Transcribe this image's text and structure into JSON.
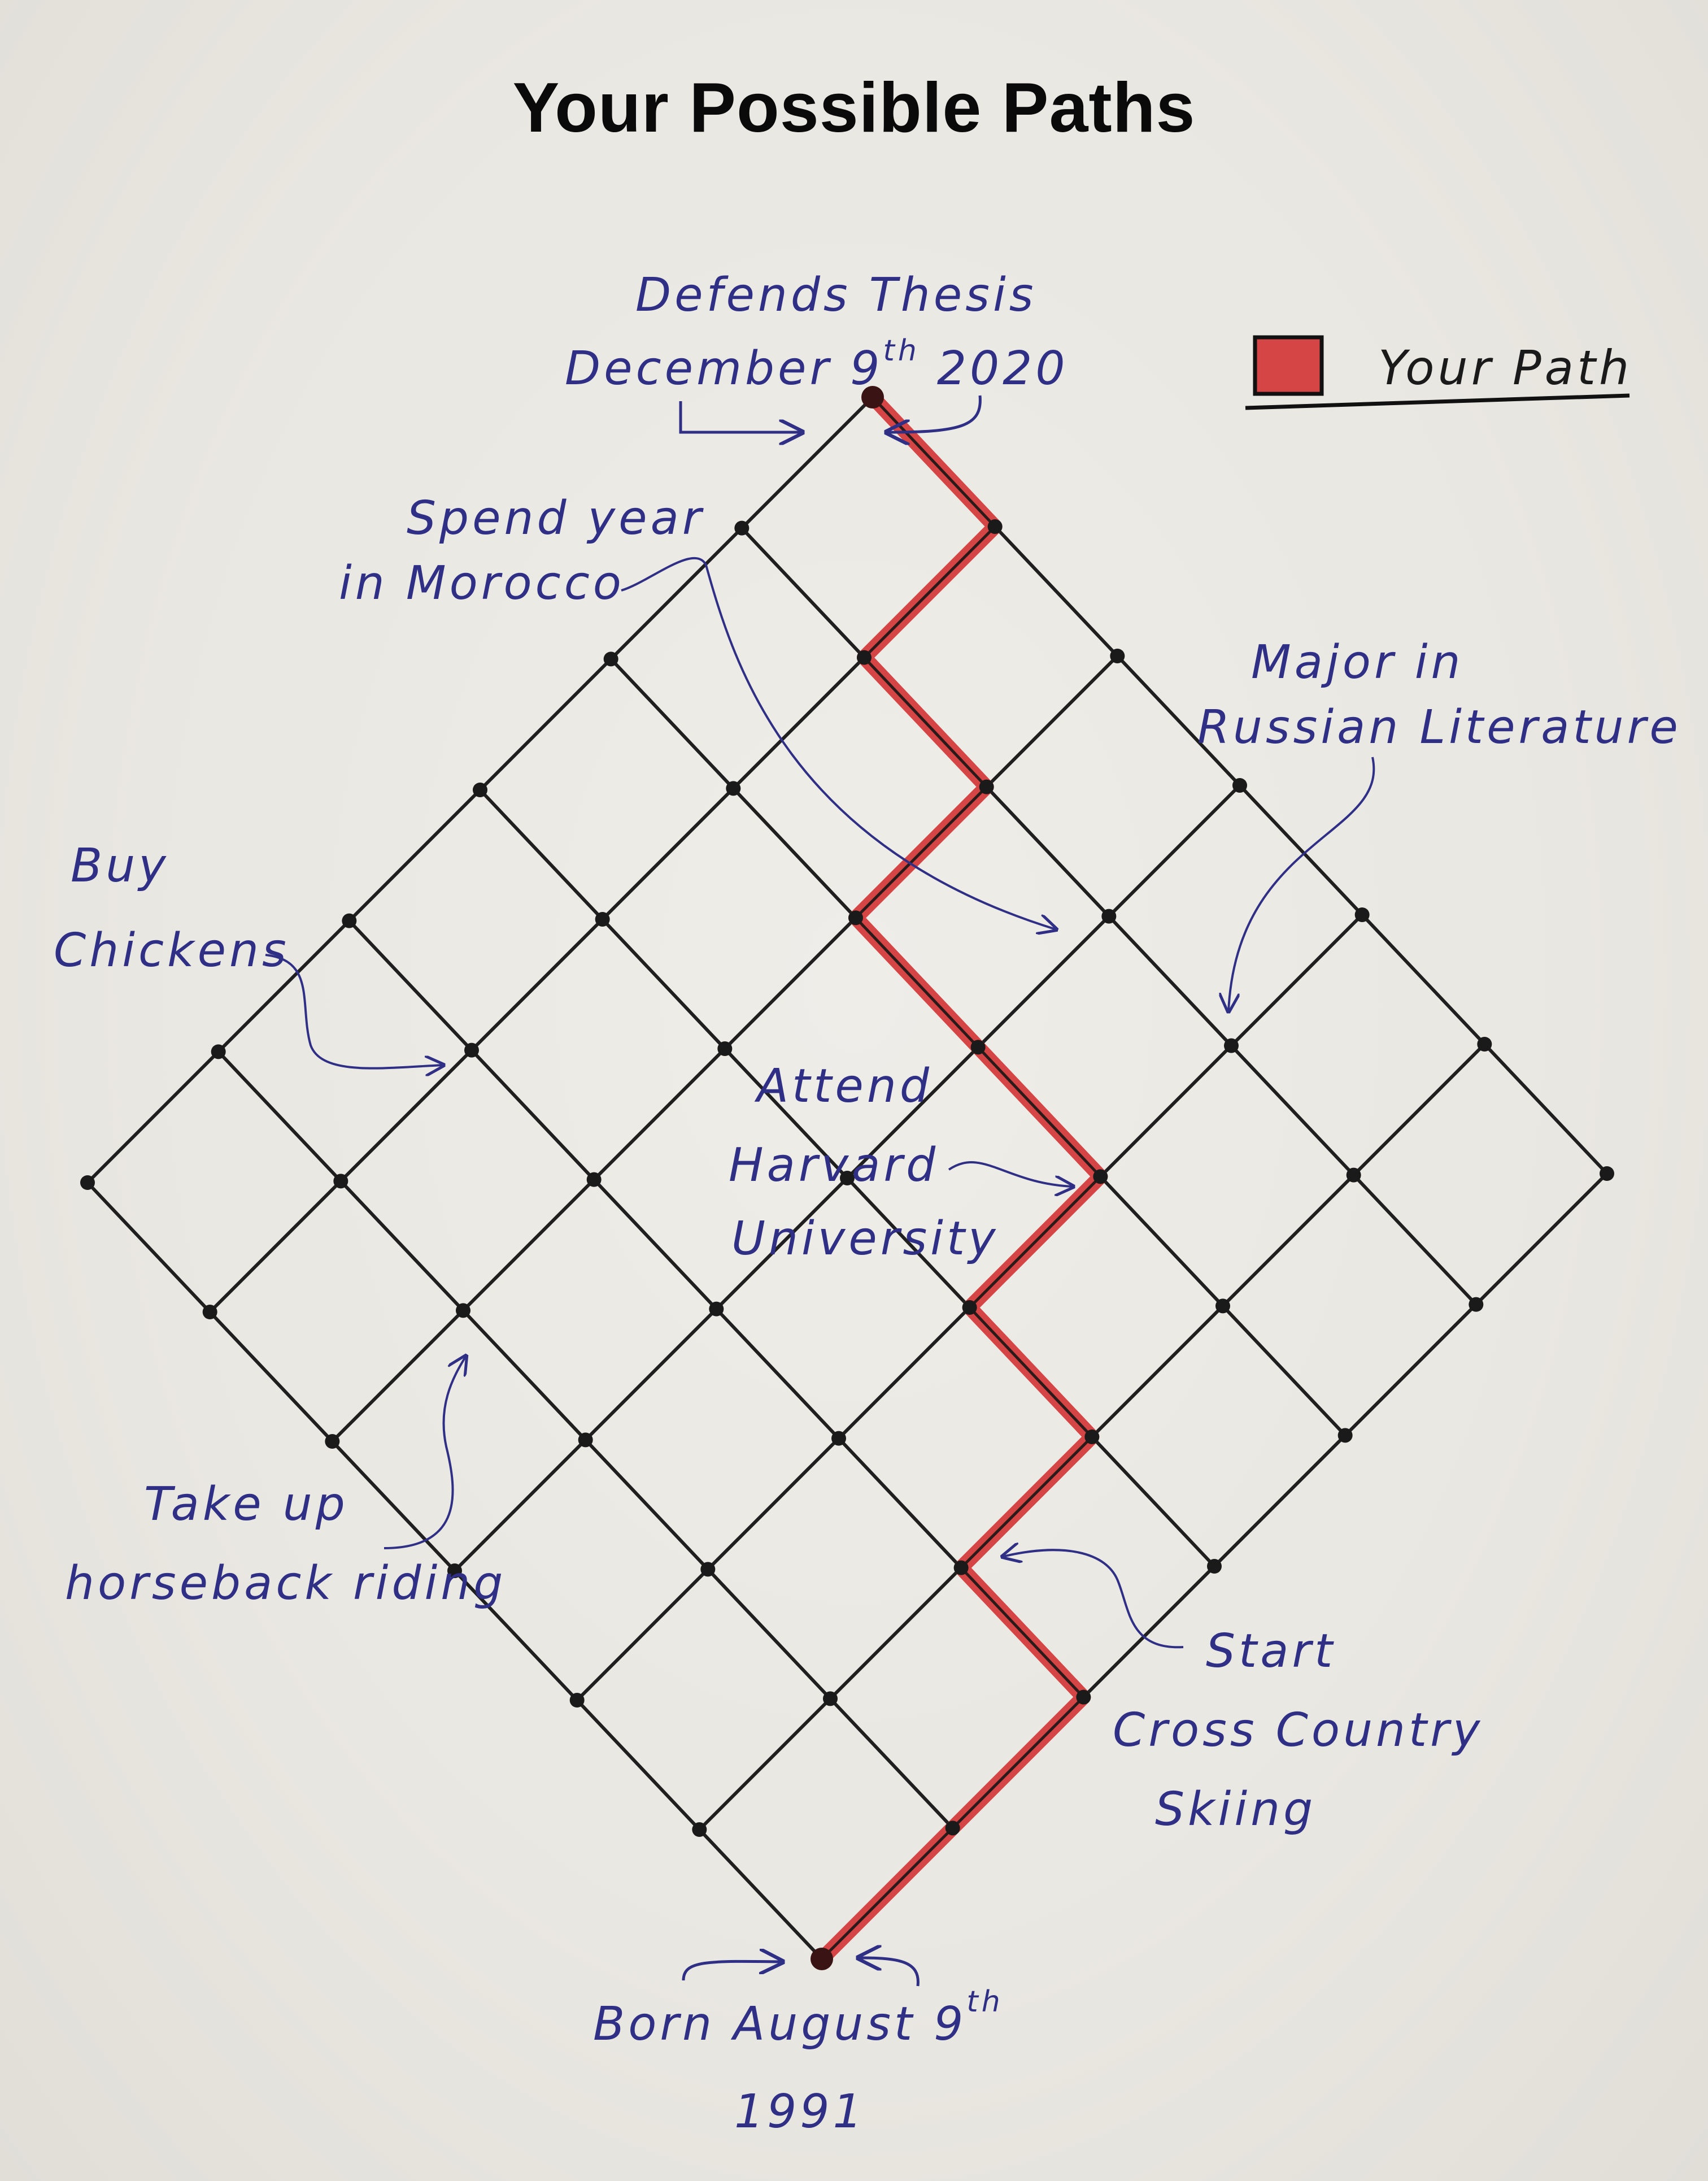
{
  "title": "Your Possible Paths",
  "legend": {
    "label": "Your Path",
    "swatch_color": "#d64545"
  },
  "colors": {
    "grid": "#1f1f1f",
    "path": "#d64545",
    "ink": "#2f2f86"
  },
  "grid": {
    "cells_per_side": 6
  },
  "path_nodes": [
    [
      0,
      0
    ],
    [
      1,
      0
    ],
    [
      2,
      0
    ],
    [
      2,
      1
    ],
    [
      3,
      1
    ],
    [
      3,
      2
    ],
    [
      4,
      2
    ],
    [
      4,
      3
    ],
    [
      4,
      4
    ],
    [
      5,
      4
    ],
    [
      5,
      5
    ],
    [
      6,
      5
    ],
    [
      6,
      6
    ]
  ],
  "annotations": {
    "top_line1": "Defends Thesis",
    "top_line2a": "December 9",
    "top_line2_sup": "th",
    "top_line2b": "2020",
    "morocco_line1": "Spend year",
    "morocco_line2": "in Morocco",
    "russian_line1": "Major in",
    "russian_line2": "Russian Literature",
    "chickens_line1": "Buy",
    "chickens_line2": "Chickens",
    "harvard_line1": "Attend",
    "harvard_line2": "Harvard",
    "harvard_line3": "University",
    "horse_line1": "Take up",
    "horse_line2": "horseback riding",
    "ski_line1": "Start",
    "ski_line2": "Cross Country",
    "ski_line3": "Skiing",
    "born_line1a": "Born  August 9",
    "born_line1_sup": "th",
    "born_line2": "1991"
  }
}
